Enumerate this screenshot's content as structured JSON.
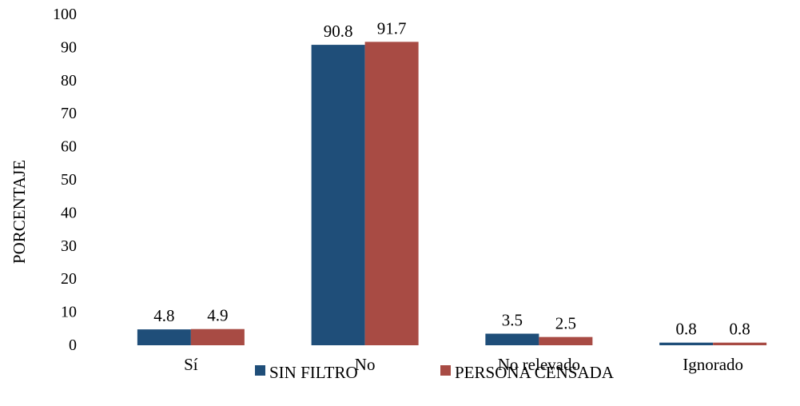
{
  "chart_data": {
    "type": "bar",
    "title": "",
    "xlabel": "",
    "ylabel": "PORCENTAJE",
    "ylim": [
      0,
      100
    ],
    "yticks": [
      0,
      10,
      20,
      30,
      40,
      50,
      60,
      70,
      80,
      90,
      100
    ],
    "ytick_labels": [
      "0",
      "10",
      "20",
      "30",
      "40",
      "50",
      "60",
      "70",
      "80",
      "90",
      "100"
    ],
    "categories": [
      "Sí",
      "No",
      "No relevado",
      "Ignorado"
    ],
    "series": [
      {
        "name": "SIN FILTRO",
        "color": "#1f4e79",
        "values": [
          4.8,
          90.8,
          3.5,
          0.8
        ],
        "labels": [
          "4.8",
          "90.8",
          "3.5",
          "0.8"
        ]
      },
      {
        "name": "PERSONA CENSADA",
        "color": "#a84b44",
        "values": [
          4.9,
          91.7,
          2.5,
          0.8
        ],
        "labels": [
          "4.9",
          "91.7",
          "2.5",
          "0.8"
        ]
      }
    ],
    "grid": false,
    "legend_position": "bottom"
  }
}
